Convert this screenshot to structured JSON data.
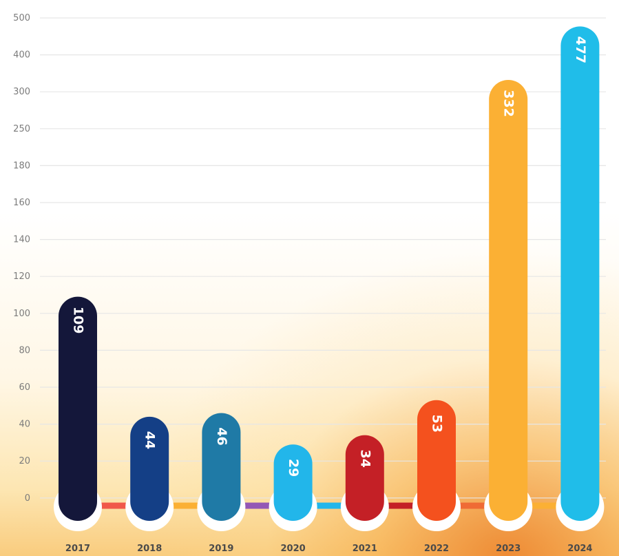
{
  "chart_data": {
    "type": "bar",
    "categories": [
      "2017",
      "2018",
      "2019",
      "2020",
      "2021",
      "2022",
      "2023",
      "2024"
    ],
    "values": [
      109,
      44,
      46,
      29,
      34,
      53,
      332,
      477
    ],
    "value_labels": [
      "109",
      "44",
      "46",
      "29",
      "34",
      "53",
      "332",
      "477"
    ],
    "y_ticks": [
      "500",
      "400",
      "300",
      "250",
      "180",
      "160",
      "140",
      "120",
      "100",
      "80",
      "60",
      "40",
      "20",
      "0"
    ],
    "y_tick_values": [
      500,
      400,
      300,
      250,
      180,
      160,
      140,
      120,
      100,
      80,
      60,
      40,
      20,
      0
    ],
    "bar_colors": [
      "#14173a",
      "#143f86",
      "#1f7aa6",
      "#22b6ea",
      "#c42026",
      "#f4511e",
      "#fbb034",
      "#20bde9"
    ],
    "connector_colors": [
      "#f0584a",
      "#fbb034",
      "#9457b5",
      "#22b6ea",
      "#c42026",
      "#ef6b35",
      "#fbb034"
    ],
    "grid": true,
    "legend": "none",
    "title": "",
    "xlabel": "",
    "ylabel": ""
  }
}
